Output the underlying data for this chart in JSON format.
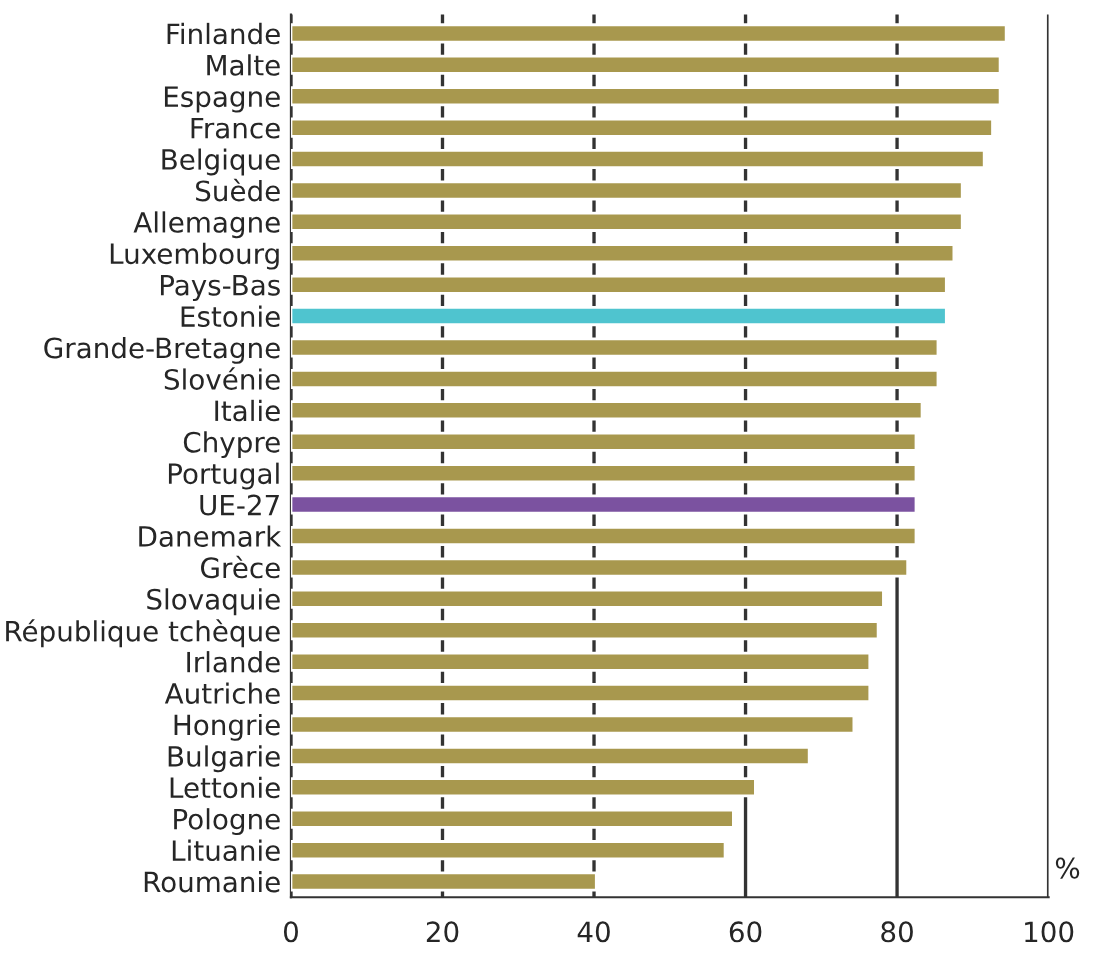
{
  "chart_data": {
    "type": "bar",
    "orientation": "horizontal",
    "xlabel": "%",
    "categories": [
      "Finlande",
      "Malte",
      "Espagne",
      "France",
      "Belgique",
      "Suède",
      "Allemagne",
      "Luxembourg",
      "Pays-Bas",
      "Estonie",
      "Grande-Bretagne",
      "Slovénie",
      "Italie",
      "Chypre",
      "Portugal",
      "UE-27",
      "Danemark",
      "Grèce",
      "Slovaquie",
      "République tchèque",
      "Irlande",
      "Autriche",
      "Hongrie",
      "Bulgarie",
      "Lettonie",
      "Pologne",
      "Lituanie",
      "Roumanie"
    ],
    "values": [
      94.4,
      93.6,
      93.6,
      92.6,
      91.5,
      88.6,
      88.6,
      87.5,
      86.5,
      86.5,
      85.4,
      85.4,
      83.3,
      82.5,
      82.5,
      82.5,
      82.5,
      81.4,
      78.2,
      77.5,
      76.4,
      76.4,
      74.3,
      68.4,
      61.3,
      58.4,
      57.3,
      40.3
    ],
    "colors": [
      "#a8984e",
      "#a8984e",
      "#a8984e",
      "#a8984e",
      "#a8984e",
      "#a8984e",
      "#a8984e",
      "#a8984e",
      "#a8984e",
      "#4fc4cf",
      "#a8984e",
      "#a8984e",
      "#a8984e",
      "#a8984e",
      "#a8984e",
      "#7b52a0",
      "#a8984e",
      "#a8984e",
      "#a8984e",
      "#a8984e",
      "#a8984e",
      "#a8984e",
      "#a8984e",
      "#a8984e",
      "#a8984e",
      "#a8984e",
      "#a8984e",
      "#a8984e"
    ],
    "xlim": [
      0,
      100
    ],
    "xticks": [
      0,
      20,
      40,
      60,
      80,
      100
    ],
    "grid": "x",
    "legend": false
  }
}
